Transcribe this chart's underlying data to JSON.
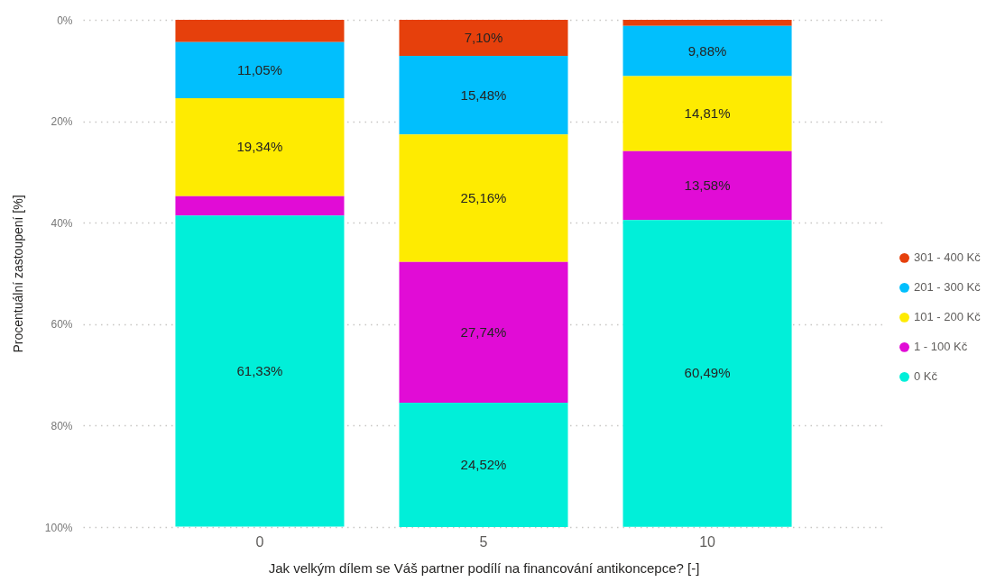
{
  "chart_data": {
    "type": "bar",
    "stacked": true,
    "xlabel": "Jak velkým dílem se Váš partner podílí na financování antikoncepce? [-]",
    "ylabel": "Procentuální zastoupení [%]",
    "categories": [
      "0",
      "5",
      "10"
    ],
    "series": [
      {
        "name": "301 - 400 Kč",
        "color": "#e6400c",
        "values": [
          4.4,
          7.1,
          1.2
        ],
        "value_labels": [
          null,
          "7,10%",
          null
        ]
      },
      {
        "name": "201 - 300 Kč",
        "color": "#01bffd",
        "values": [
          11.05,
          15.48,
          9.88
        ],
        "value_labels": [
          "11,05%",
          "15,48%",
          "9,88%"
        ]
      },
      {
        "name": "101 - 200 Kč",
        "color": "#feeb01",
        "values": [
          19.34,
          25.16,
          14.81
        ],
        "value_labels": [
          "19,34%",
          "25,16%",
          "14,81%"
        ]
      },
      {
        "name": "1 - 100 Kč",
        "color": "#e10cd6",
        "values": [
          3.8,
          27.74,
          13.58
        ],
        "value_labels": [
          null,
          "27,74%",
          "13,58%"
        ]
      },
      {
        "name": "0 Kč",
        "color": "#01efd9",
        "values": [
          61.33,
          24.52,
          60.49
        ],
        "value_labels": [
          "61,33%",
          "24,52%",
          "60,49%"
        ]
      }
    ],
    "ylim": [
      100,
      0
    ],
    "yticks": [
      {
        "value": 0,
        "label": "0%"
      },
      {
        "value": 20,
        "label": "20%"
      },
      {
        "value": 40,
        "label": "40%"
      },
      {
        "value": 60,
        "label": "60%"
      },
      {
        "value": 80,
        "label": "80%"
      },
      {
        "value": 100,
        "label": "100%"
      }
    ],
    "grid": "y",
    "legend": "right"
  }
}
